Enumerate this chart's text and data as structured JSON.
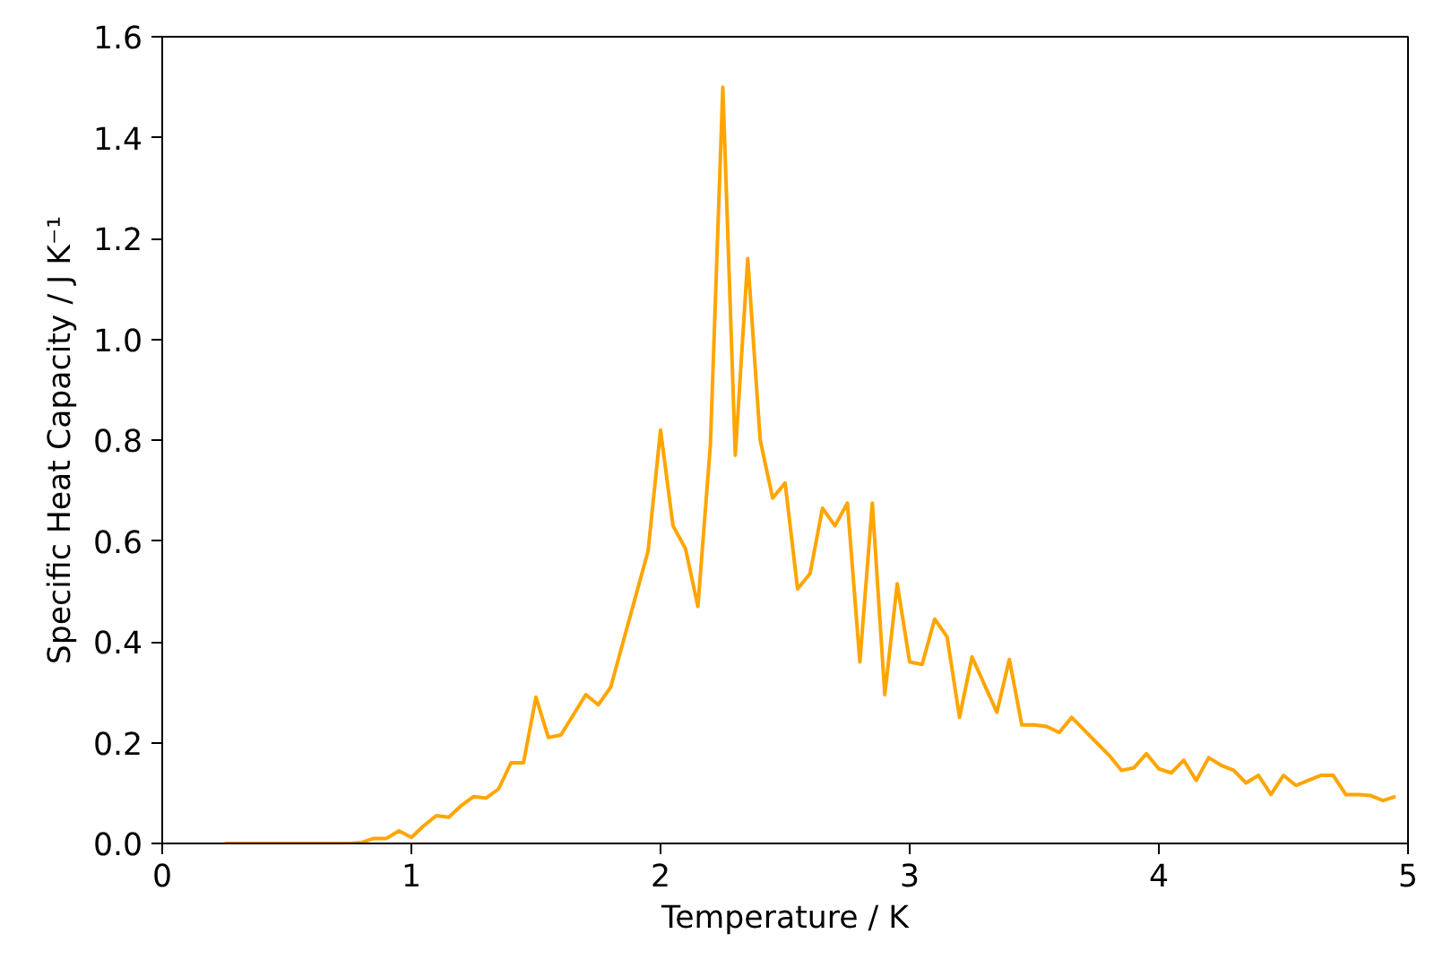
{
  "chart_data": {
    "type": "line",
    "xlabel": "Temperature / K",
    "ylabel": "Specific Heat Capacity / J K⁻¹",
    "x": [
      0.25,
      0.3,
      0.35,
      0.4,
      0.45,
      0.5,
      0.55,
      0.6,
      0.65,
      0.7,
      0.75,
      0.8,
      0.85,
      0.9,
      0.95,
      1.0,
      1.05,
      1.1,
      1.15,
      1.2,
      1.25,
      1.3,
      1.35,
      1.4,
      1.45,
      1.5,
      1.55,
      1.6,
      1.65,
      1.7,
      1.75,
      1.8,
      1.85,
      1.9,
      1.95,
      2.0,
      2.05,
      2.1,
      2.15,
      2.2,
      2.25,
      2.3,
      2.35,
      2.4,
      2.45,
      2.5,
      2.55,
      2.6,
      2.65,
      2.7,
      2.75,
      2.8,
      2.85,
      2.9,
      2.95,
      3.0,
      3.05,
      3.1,
      3.15,
      3.2,
      3.25,
      3.3,
      3.35,
      3.4,
      3.45,
      3.5,
      3.55,
      3.6,
      3.65,
      3.7,
      3.75,
      3.8,
      3.85,
      3.9,
      3.95,
      4.0,
      4.05,
      4.1,
      4.15,
      4.2,
      4.25,
      4.3,
      4.35,
      4.4,
      4.45,
      4.5,
      4.55,
      4.6,
      4.65,
      4.7,
      4.75,
      4.8,
      4.85,
      4.9,
      4.95
    ],
    "series": [
      {
        "color": "#ffa500",
        "values": [
          0,
          0,
          0,
          0,
          0,
          0,
          0,
          0,
          0,
          0,
          0,
          0.002,
          0.01,
          0.01,
          0.025,
          0.012,
          0.035,
          0.055,
          0.052,
          0.075,
          0.093,
          0.09,
          0.108,
          0.16,
          0.16,
          0.29,
          0.21,
          0.215,
          0.255,
          0.295,
          0.275,
          0.31,
          0.4,
          0.49,
          0.58,
          0.82,
          0.63,
          0.585,
          0.47,
          0.79,
          1.5,
          0.77,
          1.16,
          0.8,
          0.685,
          0.715,
          0.505,
          0.535,
          0.665,
          0.63,
          0.675,
          0.36,
          0.675,
          0.295,
          0.515,
          0.36,
          0.355,
          0.445,
          0.41,
          0.25,
          0.37,
          0.315,
          0.26,
          0.365,
          0.235,
          0.235,
          0.232,
          0.22,
          0.25,
          0.225,
          0.2,
          0.175,
          0.145,
          0.15,
          0.178,
          0.148,
          0.14,
          0.165,
          0.125,
          0.17,
          0.155,
          0.145,
          0.12,
          0.135,
          0.097,
          0.135,
          0.115,
          0.125,
          0.135,
          0.135,
          0.097,
          0.097,
          0.095,
          0.085,
          0.093
        ]
      }
    ],
    "xlim": [
      0,
      5
    ],
    "ylim": [
      0,
      1.6
    ],
    "xticks": [
      0,
      1,
      2,
      3,
      4,
      5
    ],
    "yticks": [
      {
        "value": 0,
        "label": "0.0"
      },
      {
        "value": 0.2,
        "label": "0.2"
      },
      {
        "value": 0.4,
        "label": "0.4"
      },
      {
        "value": 0.6,
        "label": "0.6"
      },
      {
        "value": 0.8,
        "label": "0.8"
      },
      {
        "value": 1.0,
        "label": "1.0"
      },
      {
        "value": 1.2,
        "label": "1.2"
      },
      {
        "value": 1.4,
        "label": "1.4"
      },
      {
        "value": 1.6,
        "label": "1.6"
      }
    ],
    "grid": false
  }
}
